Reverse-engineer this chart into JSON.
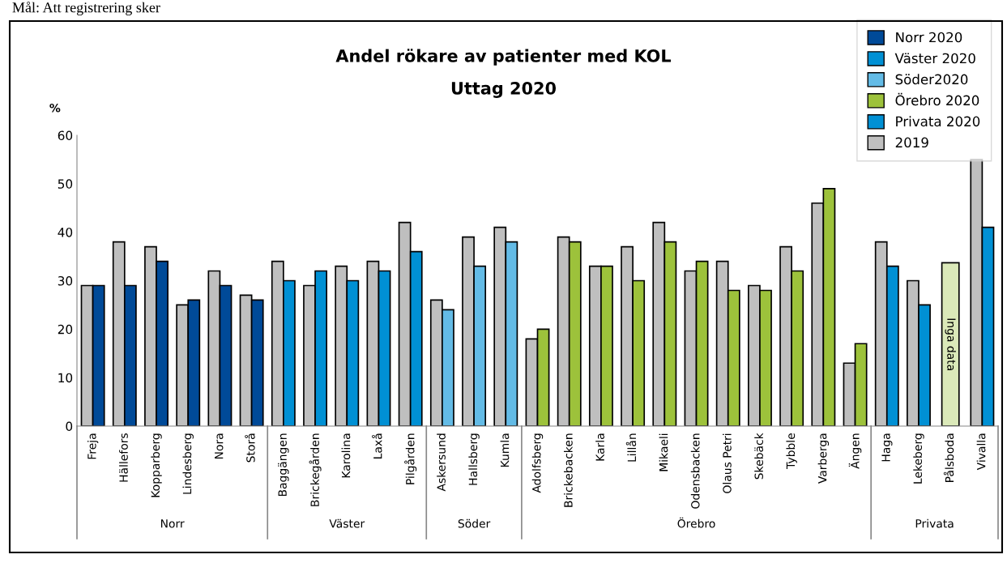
{
  "chart_data": {
    "type": "bar",
    "title": "Andel rökare av patienter med KOL",
    "subtitle": "Uttag 2020",
    "ylabel": "%",
    "categories": [
      "Freja",
      "Hällefors",
      "Kopparberg",
      "Lindesberg",
      "Nora",
      "Storå",
      "Baggängen",
      "Brickegården",
      "Karolina",
      "Laxå",
      "Pilgården",
      "Askersund",
      "Hallsberg",
      "Kumla",
      "Adolfsberg",
      "Brickebacken",
      "Karla",
      "Lillån",
      "Mikaeli",
      "Odensbacken",
      "Olaus Petri",
      "Skebäck",
      "Tybble",
      "Varberga",
      "Ängen",
      "Haga",
      "Lekeberg",
      "Pålsboda",
      "Vivalla"
    ],
    "series": [
      {
        "name": "2019",
        "color": "#bfbfbf",
        "values": [
          29,
          38,
          37,
          25,
          32,
          27,
          34,
          29,
          33,
          34,
          42,
          26,
          39,
          41,
          18,
          39,
          33,
          37,
          42,
          32,
          34,
          29,
          37,
          46,
          13,
          38,
          30,
          null,
          55
        ]
      },
      {
        "name": "Norr 2020",
        "color": "#004a98",
        "values": [
          29,
          29,
          34,
          26,
          29,
          26,
          null,
          null,
          null,
          null,
          null,
          null,
          null,
          null,
          null,
          null,
          null,
          null,
          null,
          null,
          null,
          null,
          null,
          null,
          null,
          null,
          null,
          null,
          null
        ]
      },
      {
        "name": "Väster 2020",
        "color": "#0090d4",
        "values": [
          null,
          null,
          null,
          null,
          null,
          null,
          30,
          32,
          30,
          32,
          36,
          null,
          null,
          null,
          null,
          null,
          null,
          null,
          null,
          null,
          null,
          null,
          null,
          null,
          null,
          null,
          null,
          null,
          null
        ]
      },
      {
        "name": "Söder2020",
        "color": "#63bbe6",
        "values": [
          null,
          null,
          null,
          null,
          null,
          null,
          null,
          null,
          null,
          null,
          null,
          24,
          33,
          38,
          null,
          null,
          null,
          null,
          null,
          null,
          null,
          null,
          null,
          null,
          null,
          null,
          null,
          null,
          null
        ]
      },
      {
        "name": "Örebro 2020",
        "color": "#9dc23b",
        "values": [
          null,
          null,
          null,
          null,
          null,
          null,
          null,
          null,
          null,
          null,
          null,
          null,
          null,
          null,
          20,
          38,
          33,
          30,
          38,
          34,
          28,
          28,
          32,
          49,
          17,
          null,
          null,
          null,
          null
        ]
      },
      {
        "name": "Privata 2020",
        "color": "#0090d4",
        "values": [
          null,
          null,
          null,
          null,
          null,
          null,
          null,
          null,
          null,
          null,
          null,
          null,
          null,
          null,
          null,
          null,
          null,
          null,
          null,
          null,
          null,
          null,
          null,
          null,
          null,
          33,
          25,
          null,
          41
        ]
      },
      {
        "color": "#dbe9b9",
        "values": [
          null,
          null,
          null,
          null,
          null,
          null,
          null,
          null,
          null,
          null,
          null,
          null,
          null,
          null,
          null,
          null,
          null,
          null,
          null,
          null,
          null,
          null,
          null,
          null,
          null,
          null,
          null,
          33.7,
          null
        ]
      }
    ],
    "ylim": [
      0,
      60
    ],
    "yticks": [
      0,
      10,
      20,
      30,
      40,
      50,
      60
    ],
    "grid": false,
    "legend": "top right",
    "annotations": [
      "Norr",
      "Väster",
      "Söder",
      "Örebro",
      "Privata",
      "Mål: Att registrering sker",
      "Inga data"
    ]
  }
}
